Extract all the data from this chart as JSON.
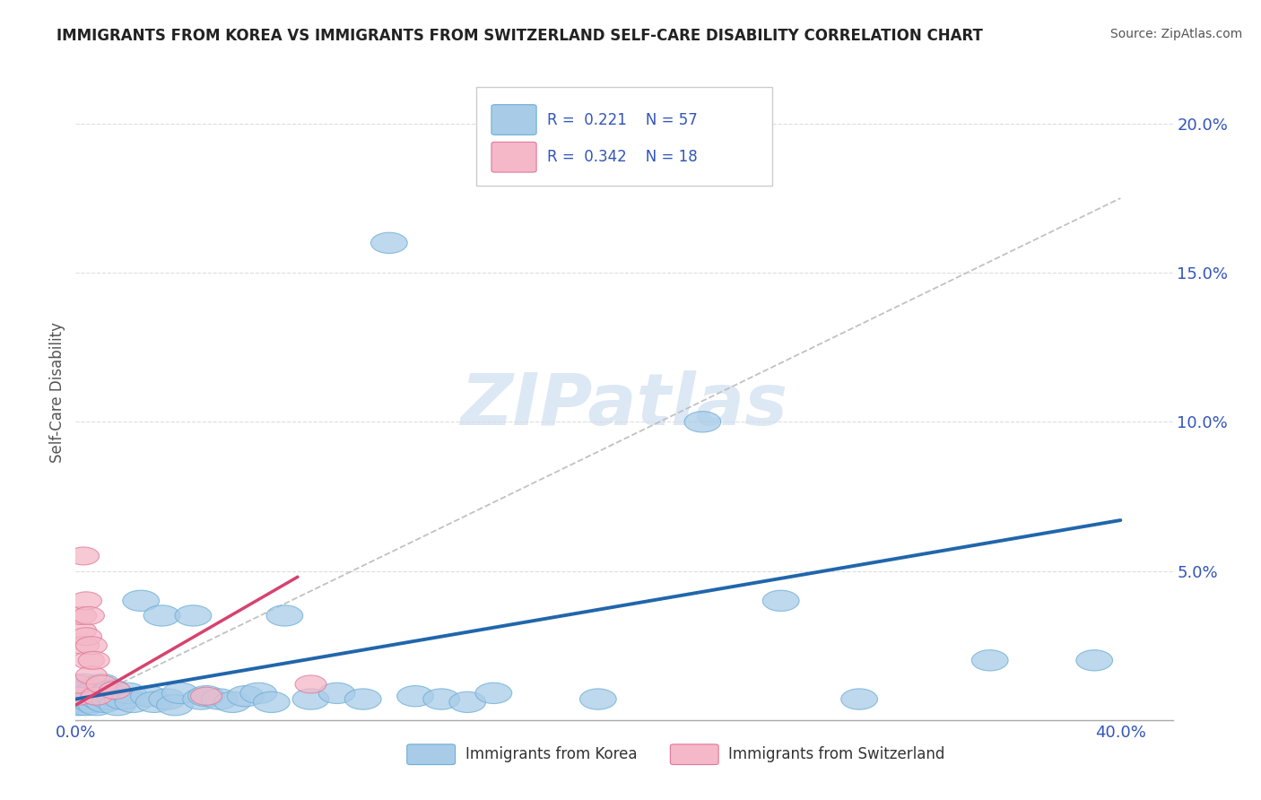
{
  "title": "IMMIGRANTS FROM KOREA VS IMMIGRANTS FROM SWITZERLAND SELF-CARE DISABILITY CORRELATION CHART",
  "source": "Source: ZipAtlas.com",
  "ylabel": "Self-Care Disability",
  "xlim": [
    0.0,
    0.42
  ],
  "ylim": [
    0.0,
    0.22
  ],
  "yticks": [
    0.0,
    0.05,
    0.1,
    0.15,
    0.2
  ],
  "ytick_labels": [
    "",
    "5.0%",
    "10.0%",
    "15.0%",
    "20.0%"
  ],
  "xticks": [
    0.0,
    0.4
  ],
  "xtick_labels": [
    "0.0%",
    "40.0%"
  ],
  "korea_R": 0.221,
  "korea_N": 57,
  "switzerland_R": 0.342,
  "switzerland_N": 18,
  "korea_color": "#a8cce8",
  "korea_edge_color": "#6baed6",
  "switzerland_color": "#f4b8c8",
  "switzerland_edge_color": "#e07898",
  "korea_line_color": "#2166ac",
  "switzerland_line_color": "#d6436e",
  "diag_line_color": "#bbbbbb",
  "watermark_color": "#dde8f5",
  "title_color": "#222222",
  "source_color": "#555555",
  "tick_color": "#3355bb",
  "ylabel_color": "#555555",
  "grid_color": "#dddddd",
  "legend_edge_color": "#cccccc",
  "korea_line": {
    "x0": 0.0,
    "y0": 0.007,
    "x1": 0.4,
    "y1": 0.067
  },
  "switzerland_line": {
    "x0": 0.0,
    "y0": 0.005,
    "x1": 0.085,
    "y1": 0.048
  },
  "diag_line": {
    "x0": 0.0,
    "y0": 0.005,
    "x1": 0.4,
    "y1": 0.175
  },
  "korea_scatter": [
    [
      0.001,
      0.008
    ],
    [
      0.001,
      0.005
    ],
    [
      0.002,
      0.01
    ],
    [
      0.002,
      0.007
    ],
    [
      0.003,
      0.006
    ],
    [
      0.003,
      0.012
    ],
    [
      0.004,
      0.008
    ],
    [
      0.004,
      0.005
    ],
    [
      0.005,
      0.01
    ],
    [
      0.005,
      0.007
    ],
    [
      0.006,
      0.006
    ],
    [
      0.006,
      0.009
    ],
    [
      0.007,
      0.008
    ],
    [
      0.008,
      0.005
    ],
    [
      0.008,
      0.01
    ],
    [
      0.009,
      0.007
    ],
    [
      0.01,
      0.012
    ],
    [
      0.01,
      0.008
    ],
    [
      0.011,
      0.006
    ],
    [
      0.012,
      0.009
    ],
    [
      0.013,
      0.007
    ],
    [
      0.014,
      0.01
    ],
    [
      0.015,
      0.008
    ],
    [
      0.016,
      0.005
    ],
    [
      0.018,
      0.007
    ],
    [
      0.02,
      0.009
    ],
    [
      0.022,
      0.006
    ],
    [
      0.025,
      0.04
    ],
    [
      0.028,
      0.008
    ],
    [
      0.03,
      0.006
    ],
    [
      0.033,
      0.035
    ],
    [
      0.035,
      0.007
    ],
    [
      0.038,
      0.005
    ],
    [
      0.04,
      0.009
    ],
    [
      0.045,
      0.035
    ],
    [
      0.048,
      0.007
    ],
    [
      0.05,
      0.008
    ],
    [
      0.055,
      0.007
    ],
    [
      0.06,
      0.006
    ],
    [
      0.065,
      0.008
    ],
    [
      0.07,
      0.009
    ],
    [
      0.075,
      0.006
    ],
    [
      0.08,
      0.035
    ],
    [
      0.09,
      0.007
    ],
    [
      0.1,
      0.009
    ],
    [
      0.11,
      0.007
    ],
    [
      0.12,
      0.16
    ],
    [
      0.13,
      0.008
    ],
    [
      0.14,
      0.007
    ],
    [
      0.15,
      0.006
    ],
    [
      0.16,
      0.009
    ],
    [
      0.2,
      0.007
    ],
    [
      0.24,
      0.1
    ],
    [
      0.27,
      0.04
    ],
    [
      0.3,
      0.007
    ],
    [
      0.35,
      0.02
    ],
    [
      0.39,
      0.02
    ]
  ],
  "switzerland_scatter": [
    [
      0.001,
      0.008
    ],
    [
      0.001,
      0.012
    ],
    [
      0.002,
      0.03
    ],
    [
      0.002,
      0.035
    ],
    [
      0.003,
      0.025
    ],
    [
      0.003,
      0.055
    ],
    [
      0.004,
      0.04
    ],
    [
      0.004,
      0.028
    ],
    [
      0.005,
      0.02
    ],
    [
      0.005,
      0.035
    ],
    [
      0.006,
      0.025
    ],
    [
      0.006,
      0.015
    ],
    [
      0.007,
      0.02
    ],
    [
      0.008,
      0.008
    ],
    [
      0.01,
      0.012
    ],
    [
      0.015,
      0.01
    ],
    [
      0.05,
      0.008
    ],
    [
      0.09,
      0.012
    ]
  ]
}
